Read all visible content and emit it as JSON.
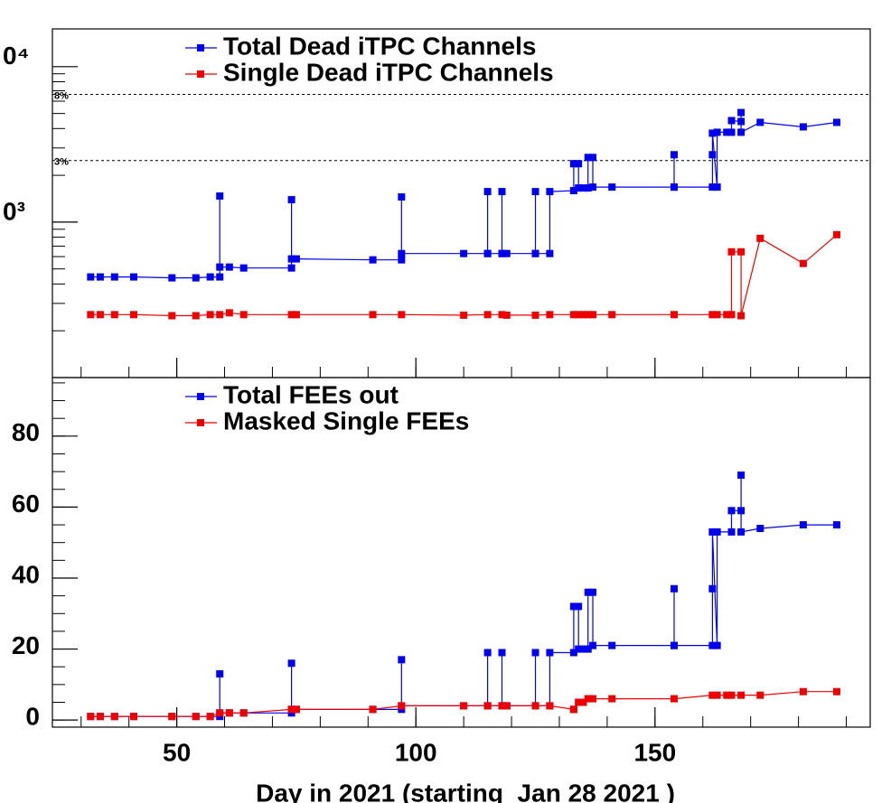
{
  "chart_data": [
    {
      "type": "line",
      "log": true,
      "legend": "top-left",
      "xlim": [
        24,
        195
      ],
      "xticks": [
        50,
        100,
        150
      ],
      "xtick_labels": false,
      "ylim": [
        100,
        17500
      ],
      "yticks": [
        {
          "value": 1000,
          "label": "0³"
        },
        {
          "value": 10000,
          "label": "0⁴"
        }
      ],
      "hlines": [
        {
          "value": 6636,
          "label": "8%"
        },
        {
          "value": 2488,
          "label": "3%"
        }
      ],
      "series": [
        {
          "name": "Total Dead iTPC Channels",
          "color": "#0000ee",
          "x": [
            32,
            34,
            37,
            41,
            49,
            54,
            57,
            59,
            59,
            59,
            61,
            64,
            74,
            74,
            74,
            75,
            91,
            97,
            97,
            97,
            110,
            115,
            115,
            115,
            118,
            118,
            118,
            119,
            125,
            125,
            125,
            128,
            128,
            133,
            133,
            134,
            134,
            135,
            136,
            136,
            137,
            137,
            141,
            154,
            154,
            154,
            162,
            162,
            162,
            163,
            163,
            165,
            166,
            166,
            168,
            168,
            168,
            172,
            181,
            188
          ],
          "values": [
            444,
            444,
            444,
            444,
            438,
            438,
            444,
            444,
            1471,
            514,
            514,
            507,
            507,
            1394,
            580,
            580,
            572,
            572,
            1452,
            628,
            628,
            628,
            1572,
            628,
            628,
            1572,
            628,
            628,
            628,
            1572,
            628,
            628,
            1572,
            1594,
            2376,
            2376,
            1658,
            1658,
            1658,
            2607,
            2607,
            1680,
            1680,
            1680,
            2714,
            1680,
            1680,
            2714,
            3735,
            1680,
            3785,
            3785,
            3785,
            4499,
            4440,
            5070,
            3785,
            4383,
            4100,
            4383
          ]
        },
        {
          "name": "Single Dead iTPC Channels",
          "color": "#ee0000",
          "x": [
            32,
            34,
            37,
            41,
            49,
            54,
            57,
            59,
            61,
            64,
            74,
            75,
            91,
            97,
            110,
            115,
            118,
            119,
            125,
            128,
            133,
            134,
            135,
            136,
            137,
            141,
            154,
            162,
            163,
            165,
            166,
            166,
            168,
            168,
            172,
            181,
            188
          ],
          "values": [
            254,
            254,
            254,
            254,
            250,
            250,
            254,
            254,
            261,
            254,
            254,
            254,
            254,
            254,
            252,
            254,
            254,
            252,
            252,
            254,
            254,
            254,
            254,
            254,
            254,
            254,
            254,
            254,
            254,
            254,
            254,
            644,
            644,
            250,
            787,
            542,
            830
          ]
        }
      ]
    },
    {
      "type": "line",
      "log": false,
      "legend": "top-left",
      "xlim": [
        24,
        195
      ],
      "xticks": [
        50,
        100,
        150
      ],
      "xlabel": "Day in 2021 (starting  Jan 28 2021 )",
      "ylim": [
        -2,
        96.5
      ],
      "yticks": [
        0,
        20,
        40,
        60,
        80
      ],
      "series": [
        {
          "name": "Total FEEs out",
          "color": "#0000ee",
          "x": [
            32,
            34,
            37,
            41,
            49,
            54,
            57,
            59,
            59,
            59,
            61,
            64,
            74,
            74,
            74,
            75,
            91,
            97,
            97,
            97,
            110,
            115,
            115,
            115,
            118,
            118,
            118,
            119,
            125,
            125,
            125,
            128,
            128,
            133,
            133,
            134,
            134,
            135,
            136,
            136,
            137,
            137,
            141,
            154,
            154,
            154,
            162,
            162,
            162,
            163,
            163,
            166,
            166,
            168,
            168,
            168,
            172,
            181,
            188
          ],
          "values": [
            1,
            1,
            1,
            1,
            1,
            1,
            1,
            1,
            13,
            2,
            2,
            2,
            2,
            16,
            3,
            3,
            3,
            3,
            17,
            4,
            4,
            4,
            19,
            4,
            4,
            19,
            4,
            4,
            4,
            19,
            4,
            4,
            19,
            19,
            32,
            32,
            20,
            20,
            20,
            36,
            36,
            21,
            21,
            21,
            37,
            21,
            21,
            37,
            53,
            21,
            53,
            53,
            59,
            59,
            69,
            53,
            54,
            55,
            55
          ]
        },
        {
          "name": "Masked Single FEEs",
          "color": "#ee0000",
          "x": [
            32,
            34,
            37,
            41,
            49,
            54,
            57,
            59,
            61,
            64,
            74,
            75,
            91,
            97,
            110,
            115,
            118,
            119,
            125,
            128,
            133,
            133,
            134,
            135,
            136,
            137,
            141,
            154,
            162,
            163,
            165,
            166,
            168,
            172,
            181,
            188
          ],
          "values": [
            1,
            1,
            1,
            1,
            1,
            1,
            1,
            2,
            2,
            2,
            3,
            3,
            3,
            4,
            4,
            4,
            4,
            4,
            4,
            4,
            3,
            3,
            5,
            5,
            6,
            6,
            6,
            6,
            7,
            7,
            7,
            7,
            7,
            7,
            8,
            8
          ]
        }
      ]
    }
  ]
}
